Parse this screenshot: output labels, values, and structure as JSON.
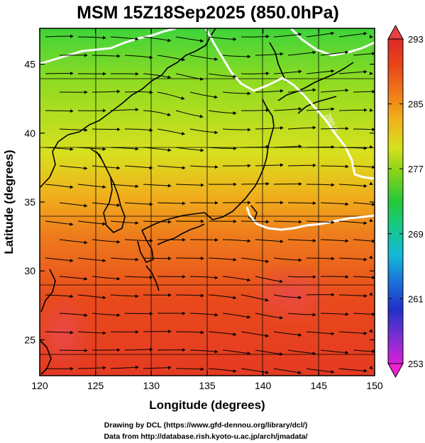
{
  "title": "MSM 15Z18Sep2025 (850.0hPa)",
  "x_axis": {
    "label": "Longitude (degrees)",
    "range": [
      120,
      150
    ],
    "ticks": [
      "120",
      "125",
      "130",
      "135",
      "140",
      "145",
      "150"
    ]
  },
  "y_axis": {
    "label": "Latitude  (degrees)",
    "range": [
      22.4,
      47.6
    ],
    "ticks": [
      "25",
      "30",
      "35",
      "40",
      "45"
    ]
  },
  "colorbar": {
    "range": [
      253,
      293
    ],
    "ticks": [
      "293",
      "285",
      "277",
      "269",
      "261",
      "253"
    ],
    "colors": [
      "#d81fd8",
      "#7a2fd0",
      "#2030c8",
      "#1b6fd8",
      "#15b8d8",
      "#16c88c",
      "#26c83a",
      "#7fd21c",
      "#d7e01c",
      "#f0b21a",
      "#ef7a1a",
      "#e8461a",
      "#dc2a28"
    ]
  },
  "contour_labels": [
    "280.0"
  ],
  "credits": {
    "line1": "Drawing by DCL (https://www.gfd-dennou.org/library/dcl/)",
    "line2": "Data from http://database.rish.kyoto-u.ac.jp/arch/jmadata/"
  }
}
